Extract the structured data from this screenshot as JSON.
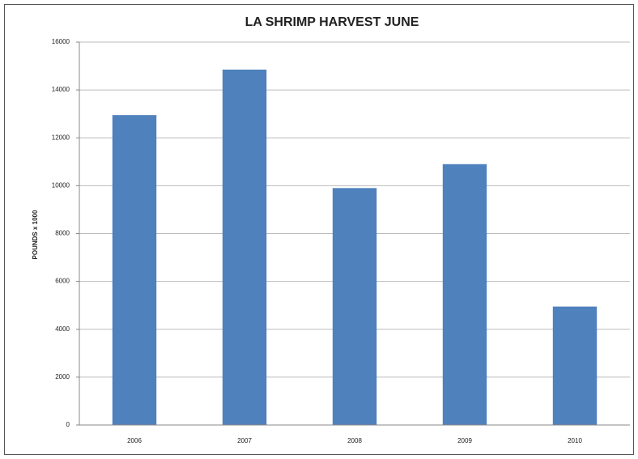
{
  "chart_data": {
    "type": "bar",
    "title": "LA SHRIMP HARVEST JUNE",
    "y_label": "POUNDS x 1000",
    "categories": [
      "2006",
      "2007",
      "2008",
      "2009",
      "2010"
    ],
    "values": [
      12950,
      14850,
      9900,
      10900,
      4950
    ],
    "color": "#4f81bd",
    "ylim": [
      0,
      16000
    ],
    "yticks": [
      0,
      2000,
      4000,
      6000,
      8000,
      10000,
      12000,
      14000,
      16000
    ],
    "grid": true
  }
}
